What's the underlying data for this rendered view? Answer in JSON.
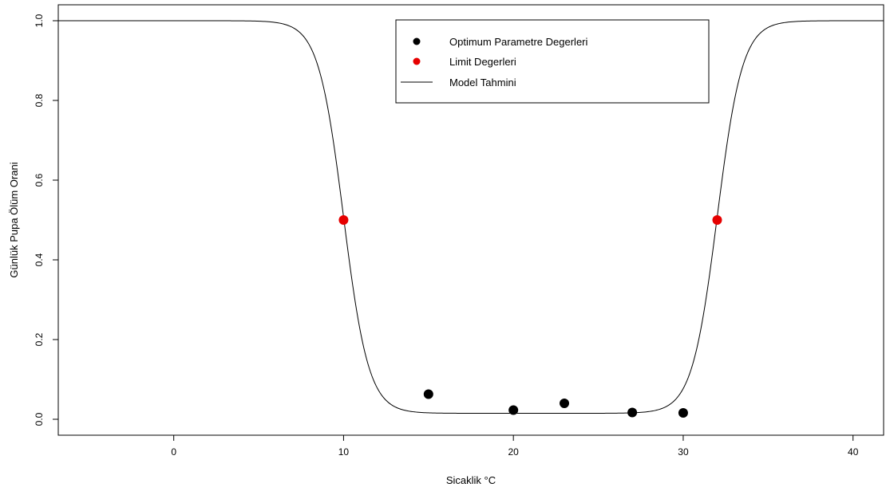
{
  "chart_data": {
    "type": "scatter",
    "xlabel": "Sicaklik °C",
    "ylabel": "Günlük Pupa Ölüm Orani",
    "xlim": [
      -6.8,
      41.8
    ],
    "ylim": [
      -0.04,
      1.04
    ],
    "x_ticks": [
      0,
      10,
      20,
      30,
      40
    ],
    "y_ticks": [
      0.0,
      0.2,
      0.4,
      0.6,
      0.8,
      1.0
    ],
    "x_tick_labels": [
      "0",
      "10",
      "20",
      "30",
      "40"
    ],
    "y_tick_labels": [
      "0.0",
      "0.2",
      "0.4",
      "0.6",
      "0.8",
      "1.0"
    ],
    "grid": false,
    "legend_position": "top-center",
    "series": [
      {
        "name": "Optimum Parametre Degerleri",
        "kind": "points",
        "color": "#000000",
        "x": [
          15,
          20,
          23,
          27,
          30
        ],
        "y": [
          0.063,
          0.023,
          0.04,
          0.017,
          0.016
        ]
      },
      {
        "name": "Limit Degerleri",
        "kind": "points",
        "color": "#e60000",
        "x": [
          10,
          32
        ],
        "y": [
          0.5,
          0.5
        ]
      },
      {
        "name": "Model Tahmini",
        "kind": "line",
        "color": "#000000",
        "model": {
          "form": "logistic_u_shape",
          "lower_limit": 10,
          "upper_limit": 32,
          "base": 0.015,
          "max": 1.0,
          "slope": 1.35
        }
      }
    ]
  }
}
